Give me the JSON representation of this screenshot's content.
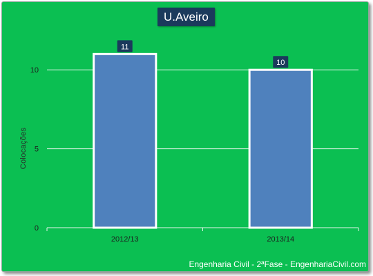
{
  "chart_data": {
    "type": "bar",
    "title": "U.Aveiro",
    "categories": [
      "2012/13",
      "2013/14"
    ],
    "values": [
      11,
      10
    ],
    "data_labels": [
      "11",
      "10"
    ],
    "xlabel": "",
    "ylabel": "Colocações",
    "ylim": [
      0,
      12.5
    ],
    "yticks": [
      0,
      5,
      10
    ],
    "grid": true,
    "legend": "none"
  },
  "colors": {
    "background": "#0bbf52",
    "bar": "#4f81bd",
    "bar_border": "#ffffff",
    "title_box": "#1b3a5c",
    "label_box": "#1b3a5c"
  },
  "footer": "Engenharia Civil - 2ªFase - EngenhariaCivil.com"
}
